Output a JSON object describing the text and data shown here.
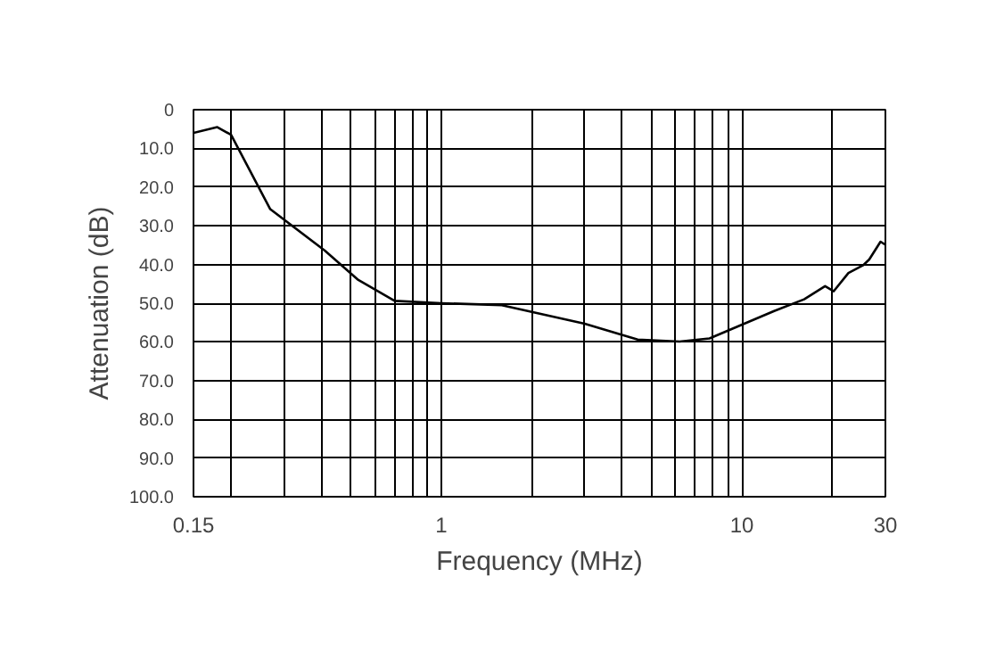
{
  "chart_data": {
    "type": "line",
    "xlabel": "Frequency (MHz)",
    "ylabel": "Attenuation (dB)",
    "log": "x",
    "grid": true,
    "marker": "none",
    "line_style": "solid",
    "xlim": [
      0.15,
      30
    ],
    "ylim": [
      100,
      0
    ],
    "xticks": [
      0.15,
      {
        "value": 0.2,
        "label": null
      },
      {
        "value": 0.3,
        "label": null
      },
      {
        "value": 0.4,
        "label": null
      },
      {
        "value": 0.5,
        "label": null
      },
      {
        "value": 0.6,
        "label": null
      },
      {
        "value": 0.7,
        "label": null
      },
      {
        "value": 0.8,
        "label": null
      },
      {
        "value": 0.9,
        "label": null
      },
      1,
      {
        "value": 2,
        "label": null
      },
      {
        "value": 3,
        "label": null
      },
      {
        "value": 4,
        "label": null
      },
      {
        "value": 5,
        "label": null
      },
      {
        "value": 6,
        "label": null
      },
      {
        "value": 7,
        "label": null
      },
      {
        "value": 8,
        "label": null
      },
      {
        "value": 9,
        "label": null
      },
      10,
      {
        "value": 20,
        "label": null
      },
      30
    ],
    "yticks": [
      0,
      {
        "value": 10,
        "label": "10.0"
      },
      {
        "value": 20,
        "label": "20.0"
      },
      {
        "value": 30,
        "label": "30.0"
      },
      {
        "value": 40,
        "label": "40.0"
      },
      {
        "value": 50,
        "label": "50.0"
      },
      {
        "value": 60,
        "label": "60.0"
      },
      {
        "value": 70,
        "label": "70.0"
      },
      {
        "value": 80,
        "label": "80.0"
      },
      {
        "value": 90,
        "label": "90.0"
      },
      {
        "value": 100,
        "label": "100.0"
      }
    ],
    "series": [
      {
        "color": "#000000",
        "x": [
          0.15,
          0.18,
          0.2,
          0.27,
          0.41,
          0.53,
          0.7,
          1.0,
          1.59,
          3.0,
          4.5,
          6.2,
          7.8,
          12.8,
          16.1,
          18.9,
          20.2,
          22.6,
          25.3,
          26.5,
          28.9,
          30
        ],
        "values": [
          6,
          4.5,
          6.5,
          25.7,
          36.4,
          44,
          49.4,
          50,
          50.5,
          55.3,
          59.4,
          59.9,
          59.1,
          52,
          49,
          45.6,
          46.9,
          42.2,
          40.2,
          38.7,
          34.1,
          34.9
        ]
      }
    ]
  }
}
